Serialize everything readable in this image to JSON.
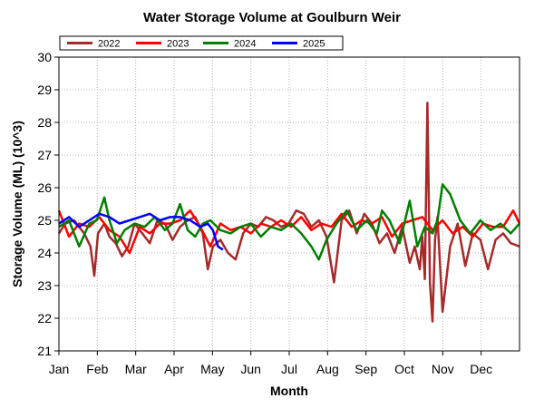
{
  "chart_data": {
    "type": "line",
    "title": "Water Storage Volume at Goulburn Weir",
    "xlabel": "Month",
    "ylabel": "Storage Volume (ML) (10^3)",
    "ylim": [
      21,
      30
    ],
    "yticks": [
      "21",
      "22",
      "23",
      "24",
      "25",
      "26",
      "27",
      "28",
      "29",
      "30"
    ],
    "categories": [
      "Jan",
      "Feb",
      "Mar",
      "Apr",
      "May",
      "Jun",
      "Jul",
      "Aug",
      "Sep",
      "Oct",
      "Nov",
      "Dec"
    ],
    "xlim": [
      0,
      365
    ],
    "grid": true,
    "legend": "top-left",
    "series": [
      {
        "name": "2022",
        "color": "#a52a2a",
        "x": [
          0,
          5,
          12,
          20,
          25,
          28,
          31,
          36,
          40,
          45,
          50,
          55,
          60,
          66,
          72,
          78,
          84,
          90,
          96,
          102,
          108,
          114,
          118,
          122,
          128,
          134,
          140,
          146,
          152,
          158,
          164,
          170,
          176,
          182,
          188,
          194,
          200,
          206,
          212,
          218,
          224,
          230,
          236,
          242,
          248,
          254,
          260,
          266,
          272,
          278,
          282,
          286,
          288,
          290,
          292,
          294,
          296,
          298,
          300,
          304,
          310,
          316,
          322,
          328,
          334,
          340,
          346,
          352,
          358,
          365
        ],
        "y": [
          24.6,
          24.9,
          25.0,
          24.6,
          24.2,
          23.3,
          24.6,
          24.9,
          24.5,
          24.3,
          23.9,
          24.2,
          24.9,
          24.6,
          24.3,
          25.0,
          24.9,
          24.4,
          24.8,
          25.0,
          25.1,
          24.6,
          23.5,
          24.2,
          24.4,
          24.0,
          23.8,
          24.6,
          24.9,
          24.8,
          25.1,
          25.0,
          24.8,
          24.9,
          25.3,
          25.2,
          24.8,
          25.0,
          24.5,
          23.1,
          25.0,
          25.3,
          24.6,
          25.2,
          24.9,
          24.3,
          24.6,
          24.0,
          24.8,
          23.7,
          24.2,
          23.5,
          24.5,
          23.2,
          28.6,
          23.1,
          21.9,
          24.4,
          25.1,
          22.2,
          24.2,
          24.9,
          23.6,
          24.6,
          24.4,
          23.5,
          24.4,
          24.6,
          24.3,
          24.2
        ]
      },
      {
        "name": "2023",
        "color": "#ff0000",
        "x": [
          0,
          8,
          16,
          24,
          32,
          40,
          48,
          56,
          64,
          72,
          80,
          88,
          96,
          104,
          112,
          120,
          128,
          136,
          144,
          152,
          160,
          168,
          176,
          184,
          192,
          200,
          208,
          216,
          224,
          232,
          240,
          248,
          256,
          264,
          272,
          280,
          288,
          296,
          304,
          312,
          320,
          328,
          336,
          344,
          352,
          360,
          365
        ],
        "y": [
          25.3,
          24.5,
          24.9,
          24.8,
          25.1,
          24.7,
          24.5,
          24.0,
          24.8,
          24.6,
          24.9,
          24.9,
          25.0,
          25.3,
          24.8,
          24.2,
          24.9,
          24.7,
          24.8,
          24.6,
          24.9,
          24.8,
          25.0,
          24.8,
          25.1,
          24.7,
          24.9,
          24.8,
          25.2,
          24.8,
          25.0,
          24.9,
          25.1,
          24.5,
          24.9,
          25.0,
          25.1,
          24.7,
          25.0,
          24.6,
          24.8,
          24.5,
          24.9,
          24.8,
          24.8,
          25.3,
          24.9
        ]
      },
      {
        "name": "2024",
        "color": "#008000",
        "x": [
          0,
          8,
          16,
          24,
          30,
          36,
          40,
          46,
          52,
          60,
          68,
          76,
          84,
          90,
          96,
          102,
          108,
          114,
          120,
          128,
          136,
          144,
          152,
          160,
          168,
          176,
          184,
          192,
          200,
          206,
          212,
          220,
          228,
          236,
          244,
          252,
          256,
          262,
          270,
          278,
          284,
          290,
          296,
          300,
          304,
          310,
          318,
          326,
          334,
          342,
          350,
          358,
          365
        ],
        "y": [
          24.8,
          25.0,
          24.2,
          24.9,
          25.0,
          25.7,
          25.0,
          24.3,
          24.7,
          24.9,
          24.8,
          25.1,
          24.7,
          24.9,
          25.5,
          24.7,
          24.5,
          24.9,
          25.0,
          24.7,
          24.6,
          24.8,
          24.9,
          24.5,
          24.8,
          24.7,
          24.9,
          24.6,
          24.2,
          23.8,
          24.4,
          24.9,
          25.3,
          24.7,
          25.0,
          24.6,
          25.3,
          25.0,
          24.3,
          25.6,
          24.2,
          24.8,
          24.6,
          25.0,
          26.1,
          25.8,
          25.0,
          24.6,
          25.0,
          24.7,
          24.9,
          24.6,
          24.9
        ]
      },
      {
        "name": "2025",
        "color": "#0000ff",
        "x": [
          0,
          8,
          16,
          24,
          32,
          40,
          48,
          56,
          64,
          72,
          80,
          88,
          96,
          104,
          112,
          118,
          122,
          126,
          130
        ],
        "y": [
          24.9,
          25.1,
          24.8,
          25.0,
          25.2,
          25.1,
          24.9,
          25.0,
          25.1,
          25.2,
          25.0,
          25.1,
          25.1,
          25.0,
          24.8,
          24.9,
          24.7,
          24.2,
          24.1
        ]
      }
    ]
  }
}
